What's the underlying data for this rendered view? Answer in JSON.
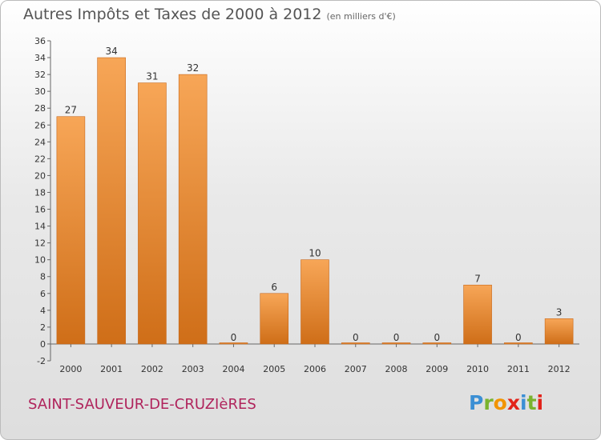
{
  "header": {
    "title": "Autres Impôts et Taxes de 2000 à 2012",
    "subtitle": "(en milliers d'€)"
  },
  "footer": {
    "commune": "SAINT-SAUVEUR-DE-CRUZIèRES",
    "logo_letters": [
      "P",
      "r",
      "o",
      "x",
      "i",
      "t",
      "i"
    ],
    "logo_colors": [
      "#3b8fd4",
      "#7ab32e",
      "#f29400",
      "#e2231a",
      "#3b8fd4",
      "#7ab32e",
      "#e2231a"
    ]
  },
  "chart_data": {
    "type": "bar",
    "categories": [
      "2000",
      "2001",
      "2002",
      "2003",
      "2004",
      "2005",
      "2006",
      "2007",
      "2008",
      "2009",
      "2010",
      "2011",
      "2012"
    ],
    "values": [
      27,
      34,
      31,
      32,
      0,
      6,
      10,
      0,
      0,
      0,
      7,
      0,
      3
    ],
    "ylim": [
      -2,
      36
    ],
    "yticks": [
      -2,
      0,
      2,
      4,
      6,
      8,
      10,
      12,
      14,
      16,
      18,
      20,
      22,
      24,
      26,
      28,
      30,
      32,
      34,
      36
    ],
    "grid": false,
    "bar_color": "#f0903a"
  }
}
